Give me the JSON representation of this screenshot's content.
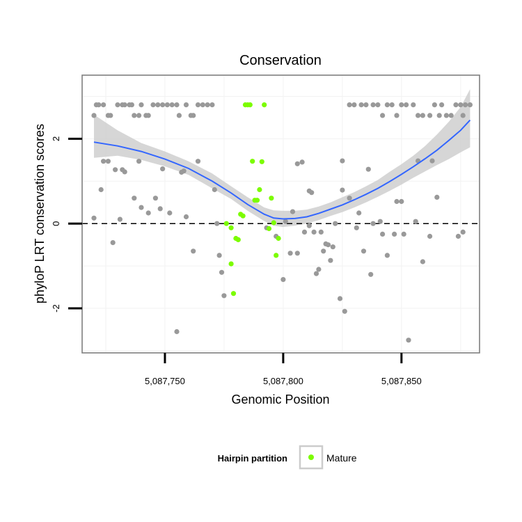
{
  "chart_data": {
    "type": "scatter",
    "title": "Conservation",
    "xlabel": "Genomic Position",
    "ylabel": "phyloP LRT conservation scores",
    "xlim": [
      5087715,
      5087883
    ],
    "ylim": [
      -3.05,
      3.5
    ],
    "x_ticks": [
      5087750,
      5087800,
      5087850
    ],
    "x_tick_labels": [
      "5,087,750",
      "5,087,800",
      "5,087,850"
    ],
    "y_ticks": [
      -2,
      0,
      2
    ],
    "y_tick_labels": [
      "-2",
      "0",
      "2"
    ],
    "reference_line": 0,
    "legend": {
      "title": "Hairpin partition",
      "position": "bottom",
      "entries": [
        {
          "label": "Mature",
          "color": "#7cfc00"
        }
      ]
    },
    "colors": {
      "other": "#999999",
      "mature": "#7cfc00",
      "smooth": "#3366ff",
      "ribbon": "#cccccc"
    },
    "series": [
      {
        "name": "Other",
        "color": "#999999",
        "points": [
          [
            5087720,
            2.55
          ],
          [
            5087721,
            2.8
          ],
          [
            5087722,
            2.8
          ],
          [
            5087724,
            2.8
          ],
          [
            5087726,
            2.55
          ],
          [
            5087727,
            2.55
          ],
          [
            5087730,
            2.8
          ],
          [
            5087732,
            2.8
          ],
          [
            5087733,
            2.8
          ],
          [
            5087735,
            2.8
          ],
          [
            5087736,
            2.8
          ],
          [
            5087737,
            2.55
          ],
          [
            5087739,
            2.55
          ],
          [
            5087740,
            2.8
          ],
          [
            5087742,
            2.55
          ],
          [
            5087743,
            2.55
          ],
          [
            5087745,
            2.8
          ],
          [
            5087747,
            2.8
          ],
          [
            5087749,
            2.8
          ],
          [
            5087751,
            2.8
          ],
          [
            5087753,
            2.8
          ],
          [
            5087755,
            2.8
          ],
          [
            5087756,
            2.55
          ],
          [
            5087759,
            2.8
          ],
          [
            5087761,
            2.55
          ],
          [
            5087762,
            2.55
          ],
          [
            5087764,
            2.8
          ],
          [
            5087766,
            2.8
          ],
          [
            5087768,
            2.8
          ],
          [
            5087770,
            2.8
          ],
          [
            5087828,
            2.8
          ],
          [
            5087830,
            2.8
          ],
          [
            5087833,
            2.8
          ],
          [
            5087835,
            2.8
          ],
          [
            5087838,
            2.8
          ],
          [
            5087840,
            2.8
          ],
          [
            5087842,
            2.55
          ],
          [
            5087844,
            2.8
          ],
          [
            5087846,
            2.8
          ],
          [
            5087848,
            2.55
          ],
          [
            5087850,
            2.8
          ],
          [
            5087852,
            2.8
          ],
          [
            5087855,
            2.8
          ],
          [
            5087857,
            2.55
          ],
          [
            5087859,
            2.55
          ],
          [
            5087862,
            2.55
          ],
          [
            5087864,
            2.8
          ],
          [
            5087866,
            2.55
          ],
          [
            5087867,
            2.8
          ],
          [
            5087869,
            2.55
          ],
          [
            5087871,
            2.55
          ],
          [
            5087873,
            2.8
          ],
          [
            5087875,
            2.8
          ],
          [
            5087876,
            2.55
          ],
          [
            5087877,
            2.8
          ],
          [
            5087879,
            2.8
          ],
          [
            5087720,
            0.13
          ],
          [
            5087723,
            0.8
          ],
          [
            5087724,
            1.47
          ],
          [
            5087726,
            1.47
          ],
          [
            5087728,
            -0.45
          ],
          [
            5087729,
            1.27
          ],
          [
            5087731,
            0.1
          ],
          [
            5087732,
            1.27
          ],
          [
            5087733,
            1.22
          ],
          [
            5087737,
            0.6
          ],
          [
            5087739,
            1.47
          ],
          [
            5087740,
            0.38
          ],
          [
            5087743,
            0.25
          ],
          [
            5087746,
            0.6
          ],
          [
            5087748,
            0.35
          ],
          [
            5087749,
            1.29
          ],
          [
            5087752,
            0.25
          ],
          [
            5087755,
            -2.55
          ],
          [
            5087757,
            1.21
          ],
          [
            5087758,
            1.24
          ],
          [
            5087759,
            0.16
          ],
          [
            5087762,
            -0.65
          ],
          [
            5087764,
            1.47
          ],
          [
            5087771,
            0.8
          ],
          [
            5087772,
            0.0
          ],
          [
            5087773,
            -0.75
          ],
          [
            5087774,
            -1.15
          ],
          [
            5087775,
            -1.7
          ],
          [
            5087793,
            -0.1
          ],
          [
            5087797,
            -0.3
          ],
          [
            5087800,
            -1.32
          ],
          [
            5087801,
            0.05
          ],
          [
            5087803,
            -0.7
          ],
          [
            5087804,
            0.28
          ],
          [
            5087806,
            -0.7
          ],
          [
            5087806,
            1.41
          ],
          [
            5087808,
            1.45
          ],
          [
            5087809,
            -0.2
          ],
          [
            5087811,
            -0.05
          ],
          [
            5087811,
            0.77
          ],
          [
            5087812,
            0.73
          ],
          [
            5087813,
            -0.2
          ],
          [
            5087814,
            -1.18
          ],
          [
            5087815,
            -1.08
          ],
          [
            5087816,
            -0.2
          ],
          [
            5087817,
            -0.65
          ],
          [
            5087818,
            -0.48
          ],
          [
            5087819,
            -0.5
          ],
          [
            5087820,
            -0.87
          ],
          [
            5087821,
            -0.55
          ],
          [
            5087822,
            0.0
          ],
          [
            5087824,
            -1.77
          ],
          [
            5087825,
            0.79
          ],
          [
            5087825,
            1.48
          ],
          [
            5087826,
            -2.07
          ],
          [
            5087828,
            0.6
          ],
          [
            5087831,
            -0.1
          ],
          [
            5087832,
            0.25
          ],
          [
            5087834,
            -0.65
          ],
          [
            5087836,
            1.28
          ],
          [
            5087837,
            -1.2
          ],
          [
            5087838,
            0.0
          ],
          [
            5087841,
            0.05
          ],
          [
            5087842,
            -0.25
          ],
          [
            5087844,
            -0.75
          ],
          [
            5087847,
            -0.25
          ],
          [
            5087848,
            0.52
          ],
          [
            5087850,
            0.52
          ],
          [
            5087851,
            -0.25
          ],
          [
            5087853,
            -2.75
          ],
          [
            5087856,
            0.05
          ],
          [
            5087857,
            1.48
          ],
          [
            5087859,
            -0.9
          ],
          [
            5087862,
            -0.3
          ],
          [
            5087863,
            1.48
          ],
          [
            5087865,
            0.62
          ],
          [
            5087874,
            -0.3
          ],
          [
            5087876,
            -0.2
          ]
        ]
      },
      {
        "name": "Mature",
        "color": "#7cfc00",
        "points": [
          [
            5087776,
            0.0
          ],
          [
            5087778,
            -0.1
          ],
          [
            5087778,
            -0.95
          ],
          [
            5087779,
            -1.65
          ],
          [
            5087780,
            -0.35
          ],
          [
            5087781,
            -0.38
          ],
          [
            5087782,
            0.22
          ],
          [
            5087783,
            0.18
          ],
          [
            5087784,
            2.8
          ],
          [
            5087785,
            2.8
          ],
          [
            5087786,
            2.8
          ],
          [
            5087787,
            1.47
          ],
          [
            5087788,
            0.55
          ],
          [
            5087789,
            0.55
          ],
          [
            5087790,
            0.8
          ],
          [
            5087791,
            1.46
          ],
          [
            5087792,
            2.8
          ],
          [
            5087794,
            -0.12
          ],
          [
            5087795,
            0.6
          ],
          [
            5087796,
            0.02
          ],
          [
            5087797,
            -0.75
          ],
          [
            5087798,
            -0.35
          ]
        ]
      }
    ],
    "smooth": {
      "x": [
        5087720,
        5087730,
        5087740,
        5087750,
        5087760,
        5087770,
        5087778,
        5087785,
        5087792,
        5087796,
        5087800,
        5087805,
        5087810,
        5087815,
        5087820,
        5087825,
        5087830,
        5087835,
        5087840,
        5087845,
        5087850,
        5087855,
        5087860,
        5087865,
        5087870,
        5087875,
        5087879
      ],
      "y": [
        1.92,
        1.83,
        1.7,
        1.52,
        1.3,
        1.0,
        0.72,
        0.45,
        0.22,
        0.13,
        0.11,
        0.12,
        0.16,
        0.24,
        0.34,
        0.44,
        0.56,
        0.69,
        0.83,
        0.99,
        1.16,
        1.34,
        1.53,
        1.73,
        1.96,
        2.2,
        2.44
      ],
      "lower": [
        1.55,
        1.6,
        1.5,
        1.35,
        1.15,
        0.83,
        0.58,
        0.3,
        0.06,
        -0.05,
        -0.08,
        -0.05,
        0.0,
        0.08,
        0.18,
        0.27,
        0.38,
        0.5,
        0.63,
        0.77,
        0.92,
        1.08,
        1.23,
        1.38,
        1.52,
        1.68,
        1.8
      ],
      "upper": [
        2.57,
        2.2,
        1.9,
        1.7,
        1.47,
        1.18,
        0.88,
        0.62,
        0.38,
        0.31,
        0.3,
        0.3,
        0.33,
        0.4,
        0.5,
        0.62,
        0.74,
        0.88,
        1.03,
        1.22,
        1.4,
        1.6,
        1.83,
        2.1,
        2.4,
        2.75,
        3.17
      ]
    }
  }
}
